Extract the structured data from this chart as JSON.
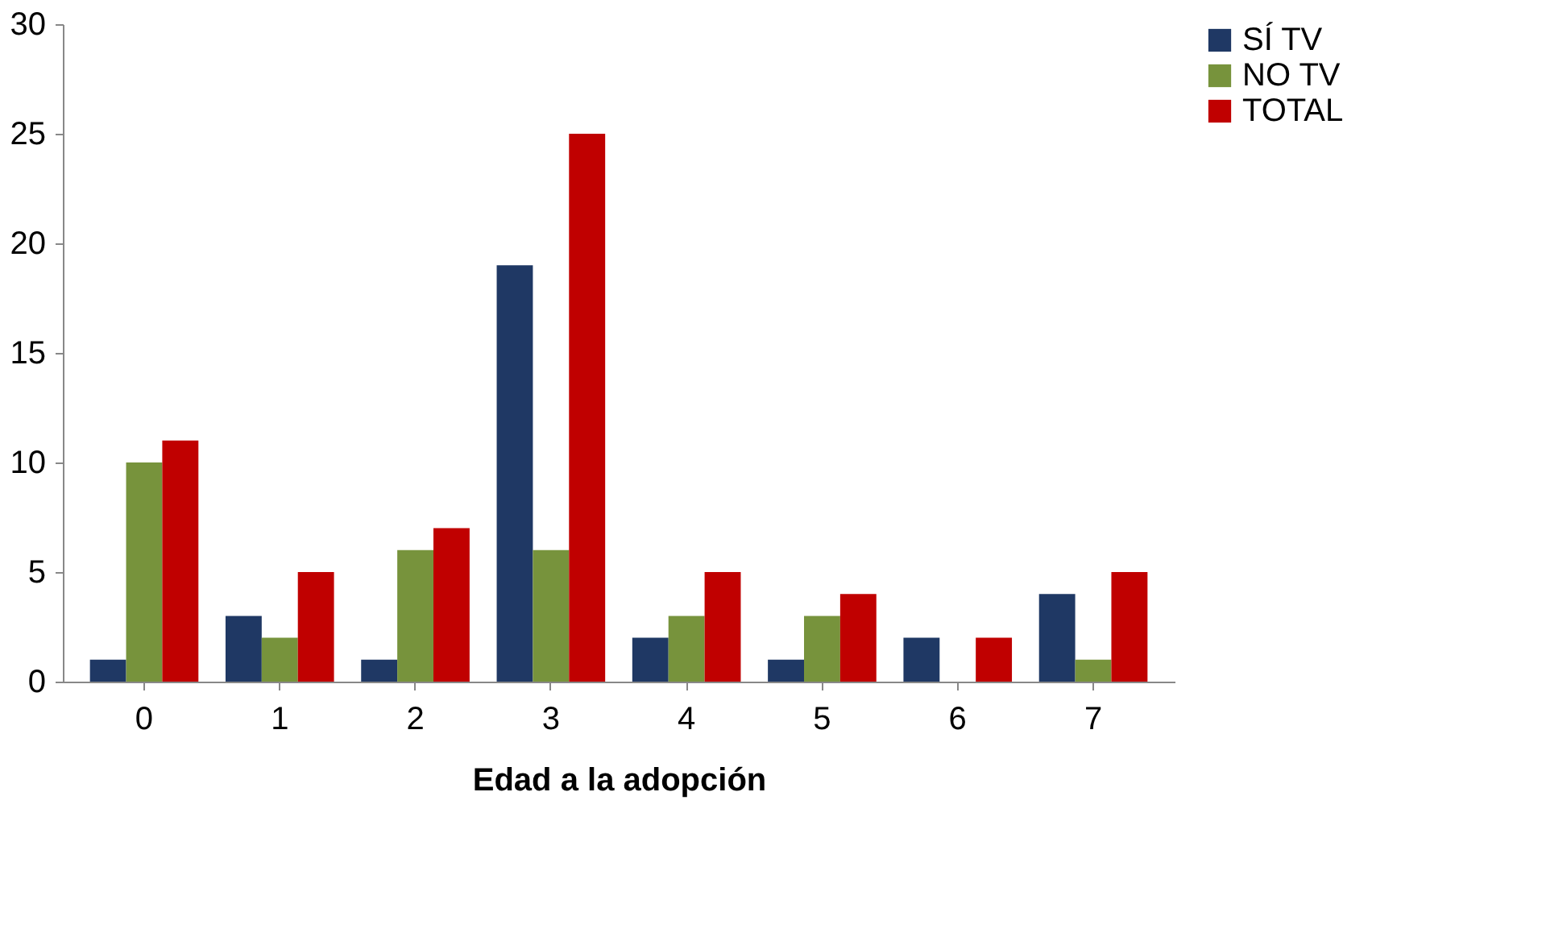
{
  "chart_data": {
    "type": "bar",
    "xlabel": "Edad a la adopción",
    "categories": [
      "0",
      "1",
      "2",
      "3",
      "4",
      "5",
      "6",
      "7"
    ],
    "series": [
      {
        "name": "SÍ TV",
        "color": "#1f3864",
        "values": [
          1,
          3,
          1,
          19,
          2,
          1,
          2,
          4
        ]
      },
      {
        "name": "NO TV",
        "color": "#77933c",
        "values": [
          10,
          2,
          6,
          6,
          3,
          3,
          0,
          1
        ]
      },
      {
        "name": "TOTAL",
        "color": "#c00000",
        "values": [
          11,
          5,
          7,
          25,
          5,
          4,
          2,
          5
        ]
      }
    ],
    "ylim": [
      0,
      30
    ],
    "yticks": [
      0,
      5,
      10,
      15,
      20,
      25,
      30
    ],
    "grid": false,
    "legend": "right"
  }
}
